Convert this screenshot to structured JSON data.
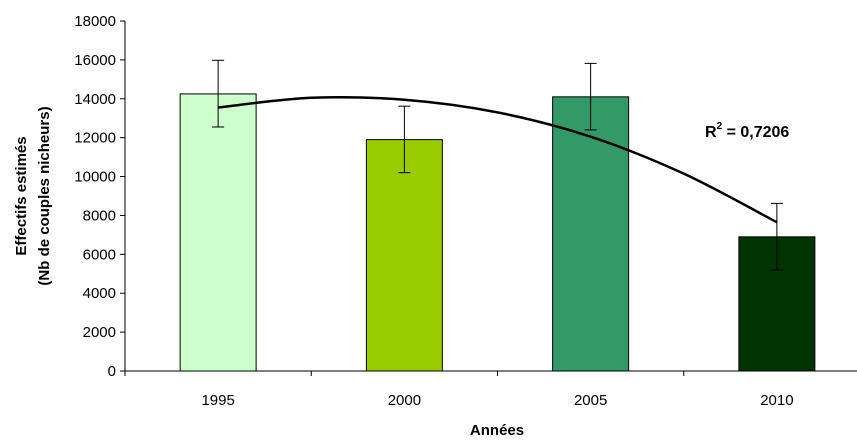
{
  "chart_data": {
    "type": "bar",
    "categories": [
      "1995",
      "2000",
      "2005",
      "2010"
    ],
    "values": [
      14250,
      11900,
      14100,
      6900
    ],
    "error_bars": [
      {
        "low": 12550,
        "high": 15980
      },
      {
        "low": 10200,
        "high": 13620
      },
      {
        "low": 12400,
        "high": 15820
      },
      {
        "low": 5200,
        "high": 8620
      }
    ],
    "bar_colors": [
      "#ccffcc",
      "#99cc00",
      "#339966",
      "#003300"
    ],
    "trendline": {
      "type": "polynomial",
      "label_pre": "R",
      "label_sup": "2",
      "label_post": " = 0,7206",
      "points": [
        {
          "x": "1995",
          "y": 13550
        },
        {
          "x": "1997.5",
          "y": 14050
        },
        {
          "x": "2000",
          "y": 13950
        },
        {
          "x": "2002.5",
          "y": 13300
        },
        {
          "x": "2005",
          "y": 12050
        },
        {
          "x": "2007.5",
          "y": 10150
        },
        {
          "x": "2010",
          "y": 7650
        }
      ]
    },
    "xlabel": "Années",
    "ylabel_line1": "Effectifs estimés",
    "ylabel_line2": "(Nb de couples nicheurs)",
    "ylim": [
      0,
      18000
    ],
    "yticks": [
      "0",
      "2000",
      "4000",
      "6000",
      "8000",
      "10000",
      "12000",
      "14000",
      "16000",
      "18000"
    ],
    "grid": false,
    "legend": "none"
  }
}
